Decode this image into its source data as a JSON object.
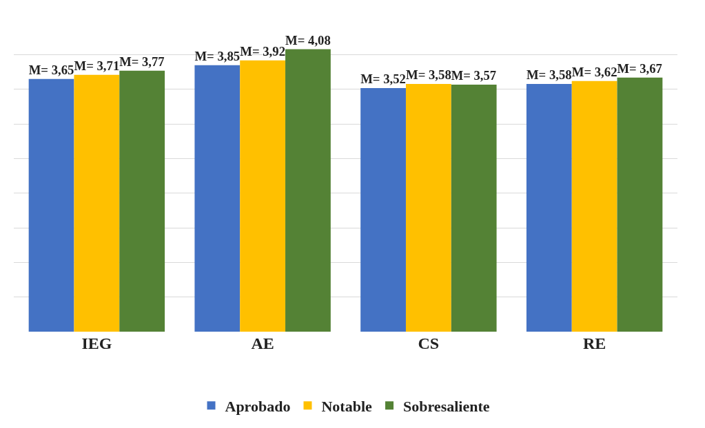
{
  "chart_data": {
    "type": "bar",
    "categories": [
      "IEG",
      "AE",
      "CS",
      "RE"
    ],
    "series": [
      {
        "name": "Aprobado",
        "color": "#4472c4",
        "values": [
          3.65,
          3.85,
          3.52,
          3.58
        ],
        "value_labels": [
          "M= 3,65",
          "M= 3,85",
          "M= 3,52",
          "M= 3,58"
        ]
      },
      {
        "name": "Notable",
        "color": "#ffc000",
        "values": [
          3.71,
          3.92,
          3.58,
          3.62
        ],
        "value_labels": [
          "M= 3,71",
          "M= 3,92",
          "M= 3,58",
          "M= 3,62"
        ]
      },
      {
        "name": "Sobresaliente",
        "color": "#548235",
        "values": [
          3.77,
          4.08,
          3.57,
          3.67
        ],
        "value_labels": [
          "M= 3,77",
          "M= 4,08",
          "M= 3,57",
          "M= 3,67"
        ]
      }
    ],
    "tick_labels": "x",
    "grid": "y",
    "legend": "bottom"
  }
}
